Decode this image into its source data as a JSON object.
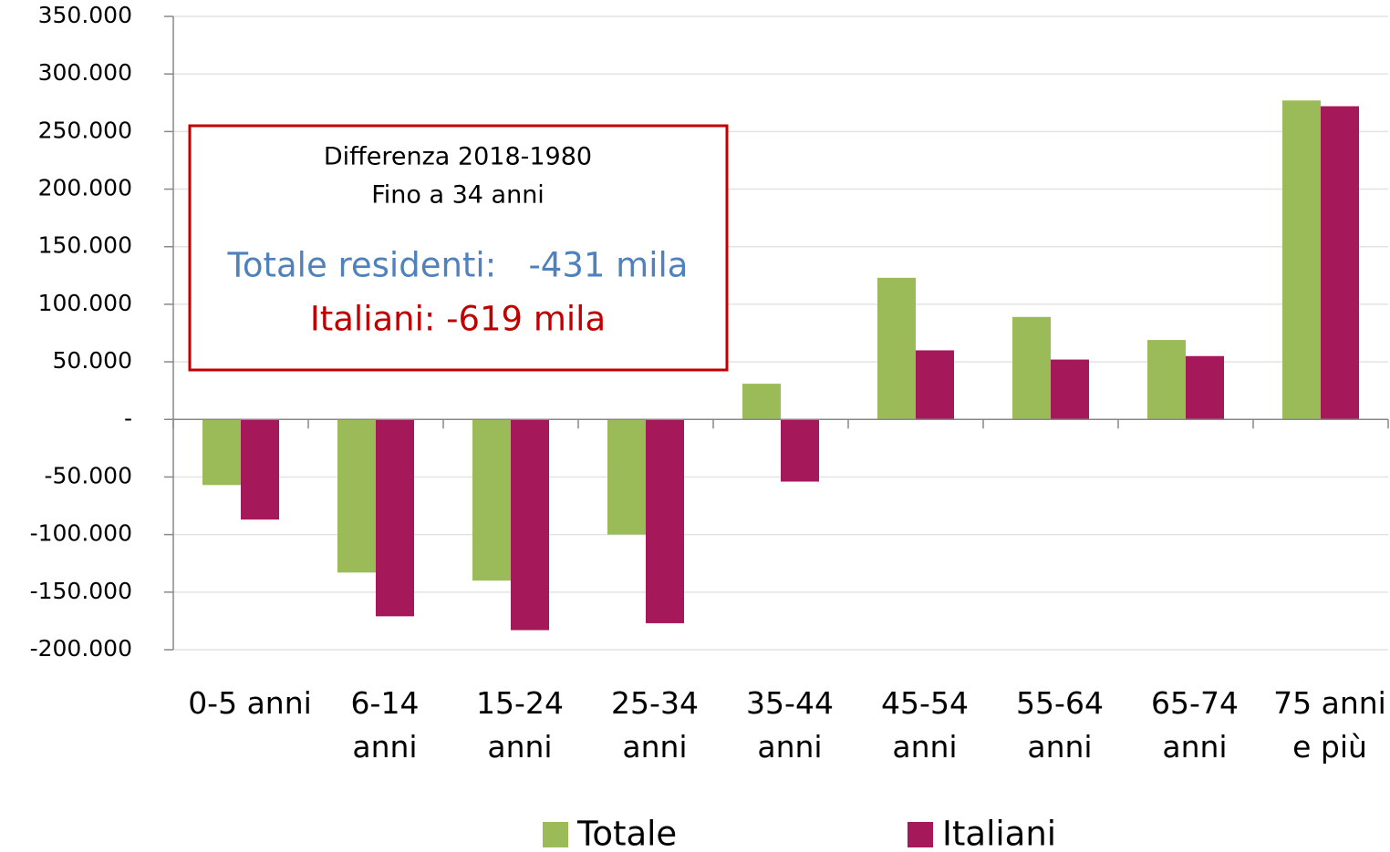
{
  "chart_data": {
    "type": "bar",
    "categories": [
      "0-5 anni",
      "6-14\nanni",
      "15-24\nanni",
      "25-34\nanni",
      "35-44\nanni",
      "45-54\nanni",
      "55-64\nanni",
      "65-74\nanni",
      "75 anni\ne più"
    ],
    "series": [
      {
        "name": "Totale",
        "color": "#9bbb59",
        "values": [
          -57000,
          -133000,
          -140000,
          -100000,
          31000,
          123000,
          89000,
          69000,
          277000
        ]
      },
      {
        "name": "Italiani",
        "color": "#a5195b",
        "values": [
          -87000,
          -171000,
          -183000,
          -177000,
          -54000,
          60000,
          52000,
          55000,
          272000
        ]
      }
    ],
    "ylim": [
      -200000,
      350000
    ],
    "yticks": [
      {
        "value": -200000,
        "label": "-200.000"
      },
      {
        "value": -150000,
        "label": "-150.000"
      },
      {
        "value": -100000,
        "label": "-100.000"
      },
      {
        "value": -50000,
        "label": "-50.000"
      },
      {
        "value": 0,
        "label": "-"
      },
      {
        "value": 50000,
        "label": "50.000"
      },
      {
        "value": 100000,
        "label": "100.000"
      },
      {
        "value": 150000,
        "label": "150.000"
      },
      {
        "value": 200000,
        "label": "200.000"
      },
      {
        "value": 250000,
        "label": "250.000"
      },
      {
        "value": 300000,
        "label": "300.000"
      },
      {
        "value": 350000,
        "label": "350.000"
      }
    ],
    "grid": true,
    "legend": "bottom",
    "annotation": {
      "lines": [
        "Differenza 2018-1980",
        "Fino a 34 anni"
      ],
      "totale": "Totale residenti:   -431 mila",
      "italiani": "Italiani: -619 mila"
    }
  }
}
